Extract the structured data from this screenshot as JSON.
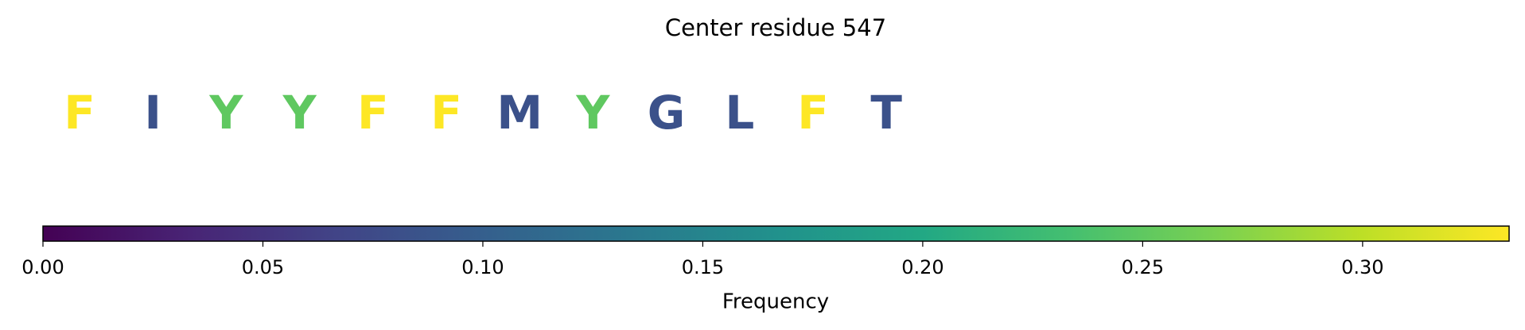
{
  "chart_data": {
    "type": "sequence-logo",
    "title": "Center residue 547",
    "categories": [
      "F",
      "I",
      "Y",
      "Y",
      "F",
      "F",
      "M",
      "Y",
      "G",
      "L",
      "F",
      "T"
    ],
    "values": [
      0.3333,
      0.0833,
      0.25,
      0.25,
      0.3333,
      0.3333,
      0.0833,
      0.25,
      0.0833,
      0.0833,
      0.3333,
      0.0833
    ],
    "colormap": "viridis",
    "xlabel": "Frequency",
    "xlim": [
      0,
      0.3333
    ],
    "xticks": [
      {
        "value": 0,
        "label": "0.00"
      },
      {
        "value": 0.05,
        "label": "0.05"
      },
      {
        "value": 0.1,
        "label": "0.10"
      },
      {
        "value": 0.15,
        "label": "0.15"
      },
      {
        "value": 0.2,
        "label": "0.20"
      },
      {
        "value": 0.25,
        "label": "0.25"
      },
      {
        "value": 0.3,
        "label": "0.30"
      }
    ]
  }
}
